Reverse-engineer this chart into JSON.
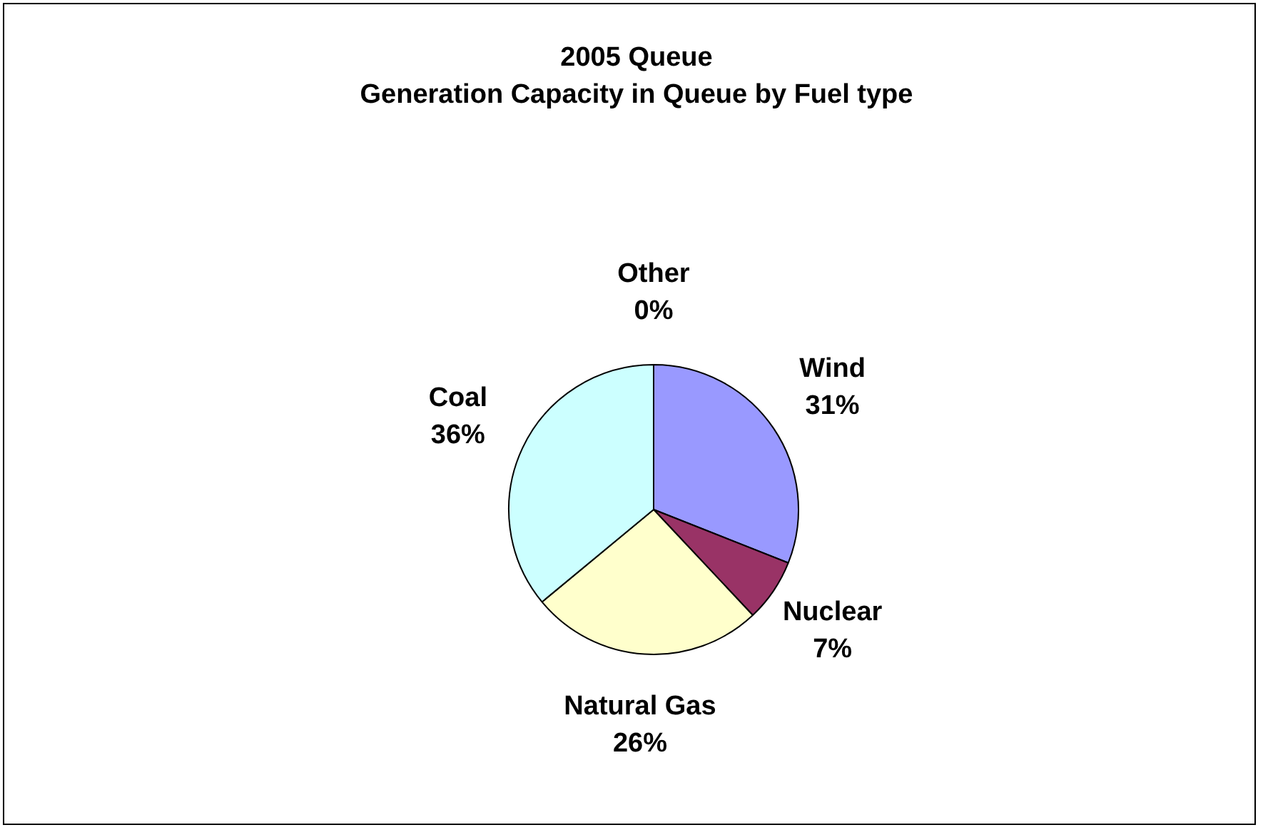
{
  "chart_data": {
    "type": "pie",
    "title": "2005 Queue",
    "subtitle": "Generation Capacity in Queue by Fuel type",
    "categories": [
      "Wind",
      "Nuclear",
      "Natural Gas",
      "Coal",
      "Other"
    ],
    "values": [
      31,
      7,
      26,
      36,
      0
    ],
    "colors": [
      "#9999ff",
      "#993366",
      "#ffffcc",
      "#ccffff",
      "#660066"
    ],
    "value_labels": [
      "31%",
      "7%",
      "26%",
      "36%",
      "0%"
    ],
    "legend": false
  }
}
